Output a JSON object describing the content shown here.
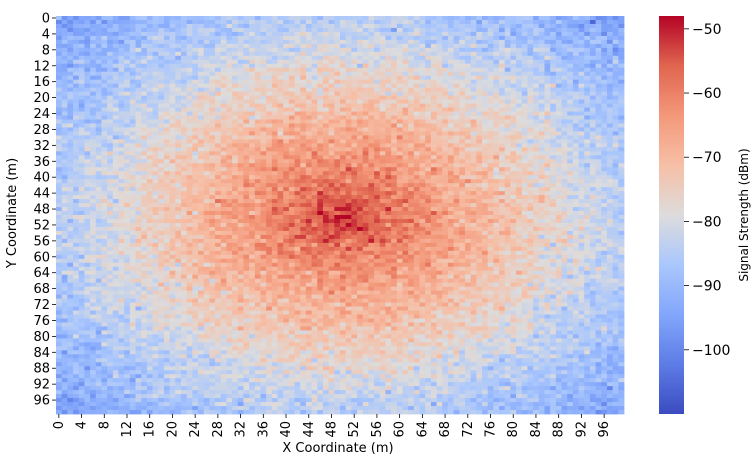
{
  "chart_data": {
    "type": "heatmap",
    "title": "",
    "xlabel": "X Coordinate (m)",
    "ylabel": "Y Coordinate (m)",
    "x_range": [
      0,
      99
    ],
    "y_range": [
      0,
      99
    ],
    "grid_size": [
      100,
      100
    ],
    "x_tick_labels": [
      "0",
      "4",
      "8",
      "12",
      "16",
      "20",
      "24",
      "28",
      "32",
      "36",
      "40",
      "44",
      "48",
      "52",
      "56",
      "60",
      "64",
      "68",
      "72",
      "76",
      "80",
      "84",
      "88",
      "92",
      "96"
    ],
    "y_tick_labels": [
      "0",
      "4",
      "8",
      "12",
      "16",
      "20",
      "24",
      "28",
      "32",
      "36",
      "40",
      "44",
      "48",
      "52",
      "56",
      "60",
      "64",
      "68",
      "72",
      "76",
      "80",
      "84",
      "88",
      "92",
      "96"
    ],
    "colorbar": {
      "label": "Signal Strength (dBm)",
      "range": [
        -110,
        -48
      ],
      "ticks": [
        "-50",
        "-60",
        "-70",
        "-80",
        "-90",
        "-100"
      ],
      "colormap": "coolwarm"
    },
    "signal_model": {
      "peak_location": [
        50,
        50
      ],
      "peak_dbm": -50,
      "corner_dbm": -96,
      "noise_std_dbm": 3
    }
  }
}
